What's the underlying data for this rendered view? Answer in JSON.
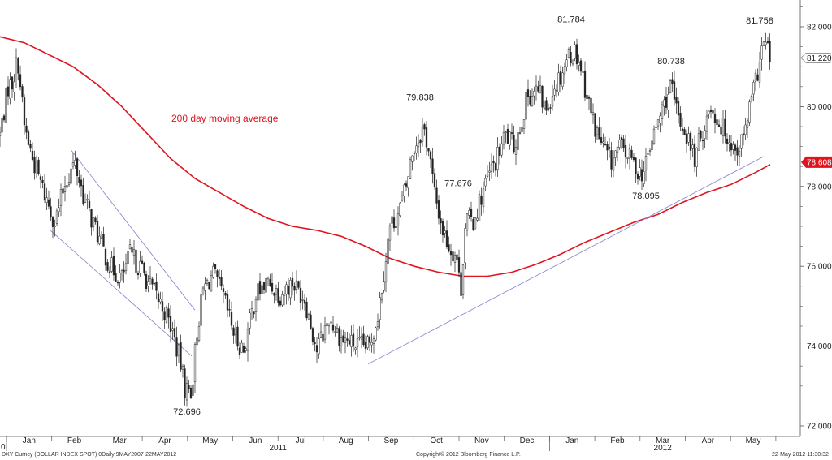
{
  "chart_data": {
    "type": "candlestick",
    "instrument": "DXY Curncy (DOLLAR INDEX SPOT)",
    "ylim": [
      72,
      82.5
    ],
    "y_ticks": [
      72,
      74,
      76,
      78,
      80,
      82
    ],
    "y_tick_labels": [
      "72.000",
      "74.000",
      "76.000",
      "78.000",
      "80.000",
      "82.000"
    ],
    "x_month_labels": [
      "Jan",
      "Feb",
      "Mar",
      "Apr",
      "May",
      "Jun",
      "Jul",
      "Aug",
      "Sep",
      "Oct",
      "Nov",
      "Dec",
      "Jan",
      "Feb",
      "Mar",
      "Apr",
      "May"
    ],
    "x_year_labels": [
      "2011",
      "2012"
    ],
    "x_left_edge_label": "0",
    "price_anchors": [
      [
        0,
        79.3
      ],
      [
        10,
        80.5
      ],
      [
        15,
        80.6
      ],
      [
        22,
        81.2
      ],
      [
        30,
        79.5
      ],
      [
        40,
        78.7
      ],
      [
        55,
        77.8
      ],
      [
        68,
        77.1
      ],
      [
        80,
        78.1
      ],
      [
        92,
        78.6
      ],
      [
        105,
        77.6
      ],
      [
        120,
        76.8
      ],
      [
        135,
        76.0
      ],
      [
        150,
        75.7
      ],
      [
        160,
        76.3
      ],
      [
        175,
        75.9
      ],
      [
        188,
        75.4
      ],
      [
        200,
        75.0
      ],
      [
        212,
        74.4
      ],
      [
        222,
        73.6
      ],
      [
        228,
        72.9
      ],
      [
        236,
        72.9
      ],
      [
        242,
        74.3
      ],
      [
        250,
        75.4
      ],
      [
        262,
        75.8
      ],
      [
        275,
        75.2
      ],
      [
        290,
        74.2
      ],
      [
        300,
        73.9
      ],
      [
        315,
        75.3
      ],
      [
        330,
        75.6
      ],
      [
        345,
        75.3
      ],
      [
        360,
        75.6
      ],
      [
        375,
        75.2
      ],
      [
        390,
        73.9
      ],
      [
        405,
        74.7
      ],
      [
        420,
        74.2
      ],
      [
        440,
        74.0
      ],
      [
        455,
        74.0
      ],
      [
        465,
        74.8
      ],
      [
        472,
        75.8
      ],
      [
        480,
        77.0
      ],
      [
        490,
        77.3
      ],
      [
        500,
        78.0
      ],
      [
        508,
        78.9
      ],
      [
        515,
        79.2
      ],
      [
        521,
        79.5
      ],
      [
        528,
        78.9
      ],
      [
        535,
        77.8
      ],
      [
        545,
        76.9
      ],
      [
        555,
        76.4
      ],
      [
        562,
        76.3
      ],
      [
        567,
        75.3
      ],
      [
        573,
        77.2
      ],
      [
        582,
        77.1
      ],
      [
        590,
        77.6
      ],
      [
        600,
        78.2
      ],
      [
        612,
        78.7
      ],
      [
        622,
        79.3
      ],
      [
        632,
        79.0
      ],
      [
        640,
        79.5
      ],
      [
        650,
        80.3
      ],
      [
        662,
        80.4
      ],
      [
        672,
        79.9
      ],
      [
        682,
        80.5
      ],
      [
        690,
        80.8
      ],
      [
        700,
        81.3
      ],
      [
        708,
        81.4
      ],
      [
        715,
        81.0
      ],
      [
        722,
        80.3
      ],
      [
        732,
        79.5
      ],
      [
        742,
        79.0
      ],
      [
        752,
        78.6
      ],
      [
        762,
        79.0
      ],
      [
        772,
        78.8
      ],
      [
        782,
        78.5
      ],
      [
        792,
        78.3
      ],
      [
        800,
        79.0
      ],
      [
        810,
        79.6
      ],
      [
        818,
        80.1
      ],
      [
        825,
        80.5
      ],
      [
        835,
        79.7
      ],
      [
        845,
        79.3
      ],
      [
        855,
        78.7
      ],
      [
        865,
        79.4
      ],
      [
        875,
        80.0
      ],
      [
        885,
        79.6
      ],
      [
        895,
        79.3
      ],
      [
        905,
        78.9
      ],
      [
        915,
        79.2
      ],
      [
        922,
        79.9
      ],
      [
        930,
        80.6
      ],
      [
        937,
        81.4
      ],
      [
        942,
        81.6
      ],
      [
        948,
        81.2
      ]
    ],
    "last_price": 81.22,
    "last_price_label": "81.220",
    "moving_average_label": "200 day moving average",
    "moving_average_current": 78.608,
    "moving_average_current_label": "78.608",
    "moving_average": [
      [
        0,
        81.75
      ],
      [
        30,
        81.6
      ],
      [
        60,
        81.3
      ],
      [
        90,
        81.0
      ],
      [
        120,
        80.55
      ],
      [
        150,
        80.0
      ],
      [
        180,
        79.35
      ],
      [
        210,
        78.7
      ],
      [
        240,
        78.2
      ],
      [
        270,
        77.85
      ],
      [
        300,
        77.5
      ],
      [
        330,
        77.2
      ],
      [
        360,
        77.0
      ],
      [
        390,
        76.9
      ],
      [
        420,
        76.75
      ],
      [
        450,
        76.5
      ],
      [
        480,
        76.2
      ],
      [
        510,
        76.0
      ],
      [
        540,
        75.85
      ],
      [
        570,
        75.75
      ],
      [
        600,
        75.75
      ],
      [
        630,
        75.85
      ],
      [
        660,
        76.05
      ],
      [
        690,
        76.3
      ],
      [
        720,
        76.6
      ],
      [
        750,
        76.85
      ],
      [
        780,
        77.1
      ],
      [
        810,
        77.3
      ],
      [
        840,
        77.6
      ],
      [
        870,
        77.85
      ],
      [
        900,
        78.05
      ],
      [
        930,
        78.35
      ],
      [
        948,
        78.55
      ]
    ],
    "trendlines": [
      {
        "name": "upper-channel",
        "from": [
          88,
          78.9
        ],
        "to": [
          240,
          74.9
        ]
      },
      {
        "name": "lower-channel",
        "from": [
          62,
          76.9
        ],
        "to": [
          236,
          73.75
        ]
      },
      {
        "name": "uptrend",
        "from": [
          453,
          73.55
        ],
        "to": [
          940,
          78.75
        ]
      }
    ],
    "annotations": [
      {
        "text": "72.696",
        "x": 230,
        "value": 72.696
      },
      {
        "text": "79.838",
        "x": 517,
        "value": 79.838
      },
      {
        "text": "77.676",
        "x": 564,
        "value": 77.676
      },
      {
        "text": "81.784",
        "x": 703,
        "value": 81.784
      },
      {
        "text": "80.738",
        "x": 826,
        "value": 80.738
      },
      {
        "text": "78.095",
        "x": 795,
        "value": 78.095
      },
      {
        "text": "81.758",
        "x": 935,
        "value": 81.758
      }
    ],
    "grid": false
  },
  "footer": {
    "security": "DXY Curncy (DOLLAR INDEX SPOT) 0Daily 9MAY2007-22MAY2012",
    "copyright": "Copyright© 2012 Bloomberg Finance L.P.",
    "timestamp": "22-May-2012 11:30:32"
  },
  "colors": {
    "candle": "#222222",
    "moving_average": "#e0141e",
    "trendline": "#8c8cd0",
    "axis": "#555555",
    "label_text": "#222222"
  }
}
